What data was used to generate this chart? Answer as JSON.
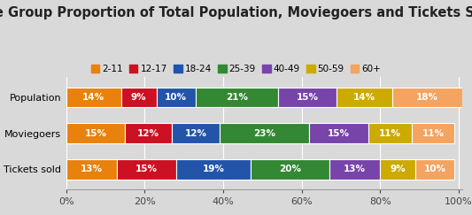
{
  "title": "Age Group Proportion of Total Population, Moviegoers and Tickets Sold",
  "categories": [
    "Population",
    "Moviegoers",
    "Tickets sold"
  ],
  "age_groups": [
    "2-11",
    "12-17",
    "18-24",
    "25-39",
    "40-49",
    "50-59",
    "60+"
  ],
  "colors": [
    "#E8820C",
    "#CC1122",
    "#2255AA",
    "#338833",
    "#7744AA",
    "#CCAA00",
    "#F4A460"
  ],
  "data": {
    "Population": [
      14,
      9,
      10,
      21,
      15,
      14,
      18
    ],
    "Moviegoers": [
      15,
      12,
      12,
      23,
      15,
      11,
      11
    ],
    "Tickets sold": [
      13,
      15,
      19,
      20,
      13,
      9,
      10
    ]
  },
  "background_color": "#D9D9D9",
  "bar_height": 0.55,
  "xlim": [
    0,
    101
  ],
  "xlabel_ticks": [
    0,
    20,
    40,
    60,
    80,
    100
  ],
  "xlabel_labels": [
    "0%",
    "20%",
    "40%",
    "60%",
    "80%",
    "100%"
  ],
  "title_fontsize": 10.5,
  "label_fontsize": 7.5,
  "tick_fontsize": 8,
  "legend_fontsize": 7.5
}
